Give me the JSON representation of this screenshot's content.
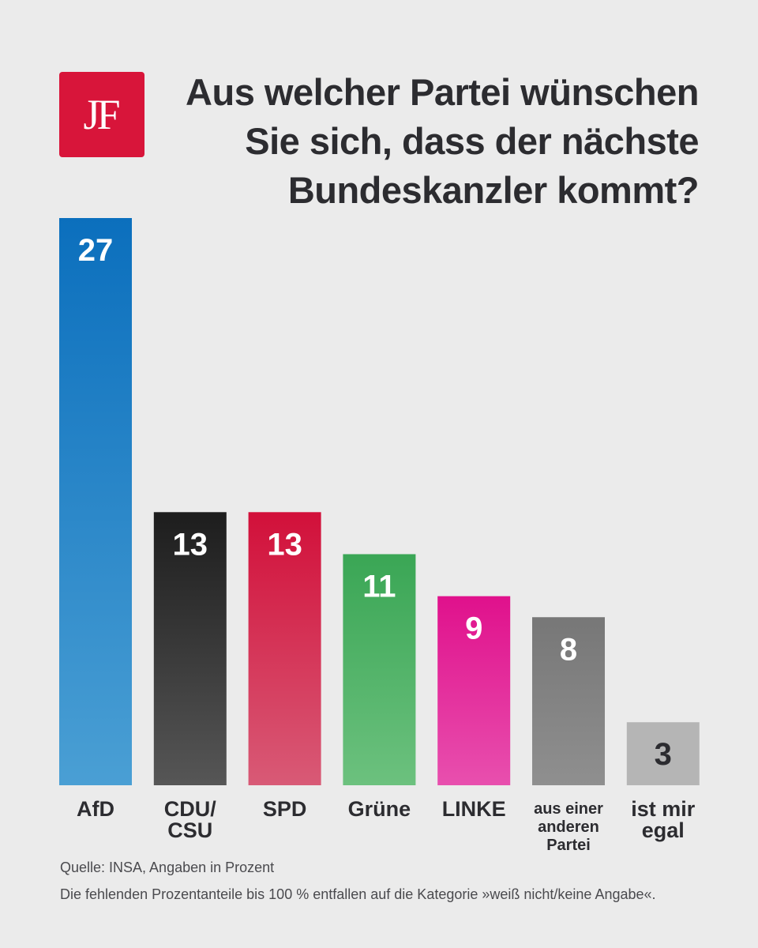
{
  "logo": {
    "text": "JF",
    "color": "#d8153a"
  },
  "title_lines": [
    "Aus welcher Partei wünschen",
    "Sie sich, dass der nächste",
    "Bundeskanzler kommt?"
  ],
  "chart_data": {
    "type": "bar",
    "title": "Aus welcher Partei wünschen Sie sich, dass der nächste Bundeskanzler kommt?",
    "categories": [
      "AfD",
      "CDU/CSU",
      "SPD",
      "Grüne",
      "LINKE",
      "aus einer anderen Partei",
      "ist mir egal"
    ],
    "category_label_lines": [
      [
        "AfD"
      ],
      [
        "CDU/",
        "CSU"
      ],
      [
        "SPD"
      ],
      [
        "Grüne"
      ],
      [
        "LINKE"
      ],
      [
        "aus einer",
        "anderen",
        "Partei"
      ],
      [
        "ist mir",
        "egal"
      ]
    ],
    "values": [
      27,
      13,
      13,
      11,
      9,
      8,
      3
    ],
    "value_labels": [
      "27",
      "13",
      "13",
      "11",
      "9",
      "8",
      "3"
    ],
    "colors": [
      [
        "#0b6fbd",
        "#4a9fd4"
      ],
      [
        "#1d1d1d",
        "#565656"
      ],
      [
        "#d2103a",
        "#d85a76"
      ],
      [
        "#3aa655",
        "#6cc17e"
      ],
      [
        "#e0118c",
        "#e84fae"
      ],
      [
        "#777777",
        "#8f8f8f"
      ],
      [
        "#b5b5b5",
        "#b5b5b5"
      ]
    ],
    "value_label_colors": [
      "#ffffff",
      "#ffffff",
      "#ffffff",
      "#ffffff",
      "#ffffff",
      "#ffffff",
      "#2c2c30"
    ],
    "ylim": [
      0,
      27
    ],
    "grid": false,
    "legend": "none"
  },
  "footer": {
    "source": "Quelle: INSA, Angaben in Prozent",
    "note": "Die fehlenden Prozentanteile bis 100 % entfallen auf die Kategorie »weiß nicht/keine Angabe«."
  }
}
